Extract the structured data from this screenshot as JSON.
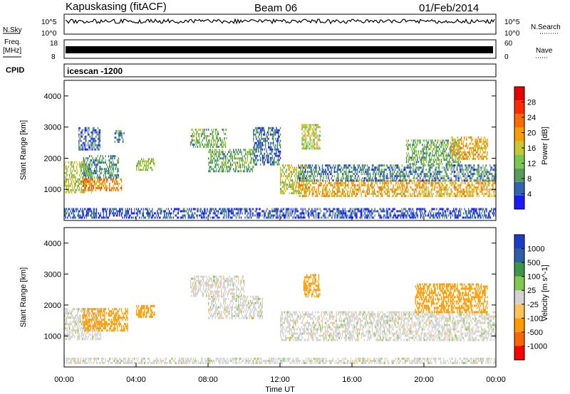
{
  "header": {
    "station": "Kapuskasing (fitACF)",
    "beam": "Beam 06",
    "date": "01/Feb/2014"
  },
  "strips": {
    "nsky_label": "N.Sky",
    "nsearch_label": "N.Search",
    "nsky_ticks": [
      "10^5",
      "10^0"
    ],
    "nsearch_ticks": [
      "10^5",
      "10^0"
    ],
    "freq_label_line1": "Freq.",
    "freq_label_line2": "[MHz]",
    "freq_ticks": [
      "18",
      "8"
    ],
    "nave_label": "Nave",
    "nave_ticks": [
      "60",
      "0"
    ],
    "cpid_label": "CPID",
    "cpid_value": "icescan -1200"
  },
  "colors": {
    "power": [
      "#1a1aff",
      "#2f65b3",
      "#5a9a5a",
      "#78c850",
      "#c8c832",
      "#f5a000",
      "#ff6a00",
      "#ff2a00",
      "#e60000"
    ],
    "velocity": [
      "#ff0000",
      "#ff6400",
      "#ff9b00",
      "#ffc35a",
      "#d2d2d2",
      "#82c850",
      "#3c9646",
      "#2d5fa5",
      "#1e3cc8"
    ],
    "ground": "#c8c8c8"
  },
  "chart_data": [
    {
      "type": "heatmap",
      "name": "power",
      "ylabel": "Slant Range [km]",
      "yticks": [
        "1000",
        "2000",
        "3000",
        "4000"
      ],
      "ylim": [
        0,
        4500
      ],
      "xlim": [
        0,
        24
      ],
      "colorbar_label": "Power [dB]",
      "colorbar_ticks": [
        "4",
        "8",
        "12",
        "16",
        "20",
        "24",
        "28"
      ],
      "colorbar_range": [
        0,
        30
      ],
      "regions": [
        {
          "t0": 0.0,
          "t1": 1.5,
          "r0": 900,
          "r1": 1900,
          "value": 14
        },
        {
          "t0": 1.0,
          "t1": 3.2,
          "r0": 950,
          "r1": 1350,
          "value": 20
        },
        {
          "t0": 1.0,
          "t1": 3.0,
          "r0": 1400,
          "r1": 2100,
          "value": 8
        },
        {
          "t0": 0.8,
          "t1": 2.0,
          "r0": 2300,
          "r1": 3000,
          "value": 5
        },
        {
          "t0": 2.8,
          "t1": 3.3,
          "r0": 2500,
          "r1": 2900,
          "value": 6
        },
        {
          "t0": 4.0,
          "t1": 5.0,
          "r0": 1600,
          "r1": 2000,
          "value": 12
        },
        {
          "t0": 7.0,
          "t1": 9.0,
          "r0": 2400,
          "r1": 2950,
          "value": 10
        },
        {
          "t0": 8.0,
          "t1": 10.5,
          "r0": 1600,
          "r1": 2300,
          "value": 10
        },
        {
          "t0": 10.5,
          "t1": 12.0,
          "r0": 1800,
          "r1": 3000,
          "value": 6
        },
        {
          "t0": 12.0,
          "t1": 13.5,
          "r0": 900,
          "r1": 1800,
          "value": 14
        },
        {
          "t0": 13.0,
          "t1": 24.0,
          "r0": 800,
          "r1": 1300,
          "value": 18
        },
        {
          "t0": 13.0,
          "t1": 24.0,
          "r0": 1300,
          "r1": 1800,
          "value": 7
        },
        {
          "t0": 13.2,
          "t1": 14.2,
          "r0": 2300,
          "r1": 3100,
          "value": 14
        },
        {
          "t0": 19.0,
          "t1": 22.0,
          "r0": 1800,
          "r1": 2600,
          "value": 10
        },
        {
          "t0": 21.5,
          "t1": 23.5,
          "r0": 2000,
          "r1": 2700,
          "value": 18
        },
        {
          "t0": 0.0,
          "t1": 24.0,
          "r0": 100,
          "r1": 400,
          "value": 4
        }
      ]
    },
    {
      "type": "heatmap",
      "name": "velocity",
      "ylabel": "Slant Range [km]",
      "yticks": [
        "1000",
        "2000",
        "3000",
        "4000"
      ],
      "ylim": [
        0,
        4500
      ],
      "xlim": [
        0,
        24
      ],
      "xlabel": "Time UT",
      "xticks": [
        "00:00",
        "04:00",
        "08:00",
        "12:00",
        "16:00",
        "20:00",
        "00:00"
      ],
      "colorbar_label": "Velocity [m s^-1]",
      "colorbar_ticks": [
        "-1000",
        "-500",
        "-100",
        "-25",
        "25",
        "100",
        "500",
        "1000"
      ],
      "regions": [
        {
          "t0": 0.0,
          "t1": 2.0,
          "r0": 900,
          "r1": 1900,
          "value": 0
        },
        {
          "t0": 1.0,
          "t1": 3.5,
          "r0": 1200,
          "r1": 1900,
          "value": -300
        },
        {
          "t0": 4.0,
          "t1": 5.0,
          "r0": 1600,
          "r1": 2000,
          "value": -300
        },
        {
          "t0": 7.0,
          "t1": 10.0,
          "r0": 2300,
          "r1": 2950,
          "value": 0
        },
        {
          "t0": 8.0,
          "t1": 11.0,
          "r0": 1600,
          "r1": 2300,
          "value": 0
        },
        {
          "t0": 12.0,
          "t1": 24.0,
          "r0": 900,
          "r1": 1800,
          "value": 0
        },
        {
          "t0": 13.3,
          "t1": 14.2,
          "r0": 2300,
          "r1": 3000,
          "value": -150
        },
        {
          "t0": 19.5,
          "t1": 23.5,
          "r0": 1800,
          "r1": 2700,
          "value": -400
        },
        {
          "t0": 0.0,
          "t1": 24.0,
          "r0": 100,
          "r1": 300,
          "value": 0
        }
      ]
    }
  ]
}
